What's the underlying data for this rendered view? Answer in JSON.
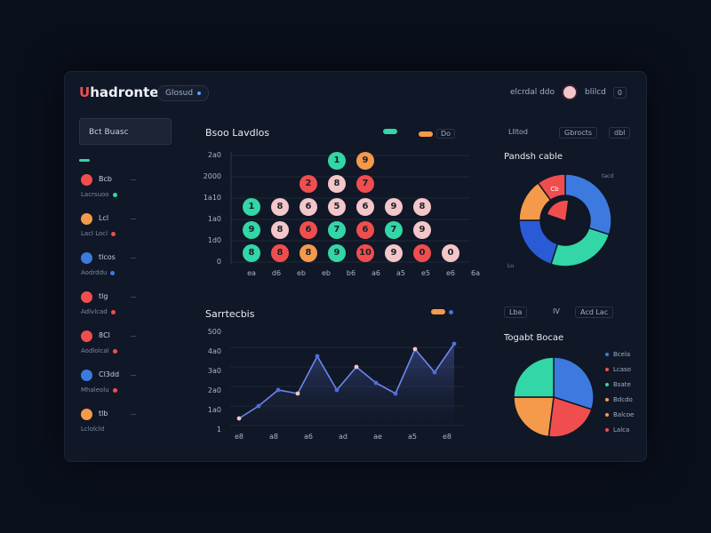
{
  "header": {
    "logo_mark": "U",
    "logo_text": "hadronte",
    "pill_label": "Glosud",
    "right_text": "elcrdal ddo",
    "user_text": "blilcd",
    "chip_text": "0"
  },
  "sidebar": {
    "search_label": "Bct Buasc",
    "items": [
      {
        "name": "Bcb",
        "sub": "Lacrsuoo",
        "icon_color": "#f04e4e",
        "dot_color": "#33d6a6"
      },
      {
        "name": "Lcl",
        "sub": "Lacl Locl",
        "icon_color": "#f59a4a",
        "dot_color": "#f04e4e"
      },
      {
        "name": "tlcos",
        "sub": "Aodrddu",
        "icon_color": "#3d7ae0",
        "dot_color": "#3d7ae0"
      },
      {
        "name": "tlg",
        "sub": "Adlvlcad",
        "icon_color": "#f04e4e",
        "dot_color": "#f04e4e"
      },
      {
        "name": "8Cl",
        "sub": "Aodlolcal",
        "icon_color": "#f04e4e",
        "dot_color": "#f04e4e"
      },
      {
        "name": "Cl3dd",
        "sub": "Mhaleolu",
        "icon_color": "#3d7ae0",
        "dot_color": "#f04e4e"
      },
      {
        "name": "tlb",
        "sub": "Lclolcld",
        "icon_color": "#f59a4a",
        "dot_color": ""
      }
    ]
  },
  "bubble_panel": {
    "title": "Bsoo Lavdlos",
    "legend_a_color": "#33d6a6",
    "legend_b_color": "#f59a4a",
    "legend_b_label": "Do",
    "y_ticks": [
      "0",
      "1d0",
      "1a0",
      "1a10",
      "2000",
      "2a0"
    ],
    "x_ticks": [
      "ea",
      "d6",
      "eb",
      "eb",
      "b6",
      "a6",
      "a5",
      "e5",
      "e6",
      "6a"
    ],
    "columns": [
      [
        {
          "v": "8",
          "c": "#33d6a6"
        },
        {
          "v": "9",
          "c": "#33d6a6"
        },
        {
          "v": "1",
          "c": "#33d6a6"
        }
      ],
      [
        {
          "v": "8",
          "c": "#f04e4e"
        },
        {
          "v": "8",
          "c": "#f3c6c9"
        },
        {
          "v": "8",
          "c": "#f3c6c9"
        }
      ],
      [
        {
          "v": "8",
          "c": "#f59a4a"
        },
        {
          "v": "6",
          "c": "#f04e4e"
        },
        {
          "v": "6",
          "c": "#f3c6c9"
        },
        {
          "v": "2",
          "c": "#f04e4e"
        }
      ],
      [
        {
          "v": "9",
          "c": "#33d6a6"
        },
        {
          "v": "7",
          "c": "#33d6a6"
        },
        {
          "v": "5",
          "c": "#f3c6c9"
        },
        {
          "v": "8",
          "c": "#f3c6c9"
        },
        {
          "v": "1",
          "c": "#33d6a6"
        }
      ],
      [
        {
          "v": "10",
          "c": "#f04e4e"
        },
        {
          "v": "6",
          "c": "#f04e4e"
        },
        {
          "v": "6",
          "c": "#f3c6c9"
        },
        {
          "v": "7",
          "c": "#f04e4e"
        },
        {
          "v": "9",
          "c": "#f59a4a"
        }
      ],
      [
        {
          "v": "9",
          "c": "#f3c6c9"
        },
        {
          "v": "7",
          "c": "#33d6a6"
        },
        {
          "v": "9",
          "c": "#f3c6c9"
        }
      ],
      [
        {
          "v": "0",
          "c": "#f04e4e"
        },
        {
          "v": "9",
          "c": "#f3c6c9"
        },
        {
          "v": "8",
          "c": "#f3c6c9"
        }
      ],
      [
        {
          "v": "0",
          "c": "#f3c6c9"
        }
      ]
    ]
  },
  "line_panel": {
    "title": "Sarrtecbis",
    "legend_color": "#f59a4a",
    "y_ticks": [
      "1",
      "1a0",
      "2a0",
      "3a0",
      "4a0",
      "500"
    ],
    "x_ticks": [
      "e8",
      "a8",
      "a6",
      "ad",
      "ae",
      "a5",
      "e8"
    ],
    "chart_data": {
      "type": "area",
      "x": [
        0,
        1,
        2,
        3,
        4,
        5,
        6,
        7,
        8,
        9,
        10,
        11
      ],
      "values": [
        40,
        110,
        200,
        180,
        390,
        200,
        330,
        240,
        180,
        430,
        300,
        460
      ],
      "ylim": [
        0,
        500
      ],
      "line_color": "#6f86f0",
      "point_color_a": "#f3c6c9",
      "point_color_b": "#4c6fe0"
    }
  },
  "right_top": {
    "tab_a": "Llltod",
    "tab_b": "Gbrocts",
    "tab_c": "dbl",
    "title": "Pandsh cable",
    "badge": "Cb",
    "label_tr": "tacd",
    "label_bl": "Lu",
    "chart_data": {
      "type": "pie",
      "donut": true,
      "values": [
        30,
        25,
        20,
        15,
        10
      ],
      "colors": [
        "#3d7ae0",
        "#33d6a6",
        "#2a5bd7",
        "#f59a4a",
        "#f04e4e"
      ]
    }
  },
  "right_mid": {
    "tab_a": "Lba",
    "tab_b": "IV",
    "tab_c": "Acd Lac"
  },
  "right_bottom": {
    "title": "Togabt Bocae",
    "legend": [
      {
        "label": "Bcela",
        "color": "#3d7ae0"
      },
      {
        "label": "Lcaso",
        "color": "#f04e4e"
      },
      {
        "label": "Bsate",
        "color": "#33d6a6"
      },
      {
        "label": "Bdcdo",
        "color": "#f59a4a"
      },
      {
        "label": "Balcoe",
        "color": "#f59a4a"
      },
      {
        "label": "Lalca",
        "color": "#f04e4e"
      }
    ],
    "chart_data": {
      "type": "pie",
      "values": [
        30,
        22,
        23,
        25
      ],
      "colors": [
        "#3d7ae0",
        "#f04e4e",
        "#f59a4a",
        "#33d6a6"
      ]
    }
  }
}
